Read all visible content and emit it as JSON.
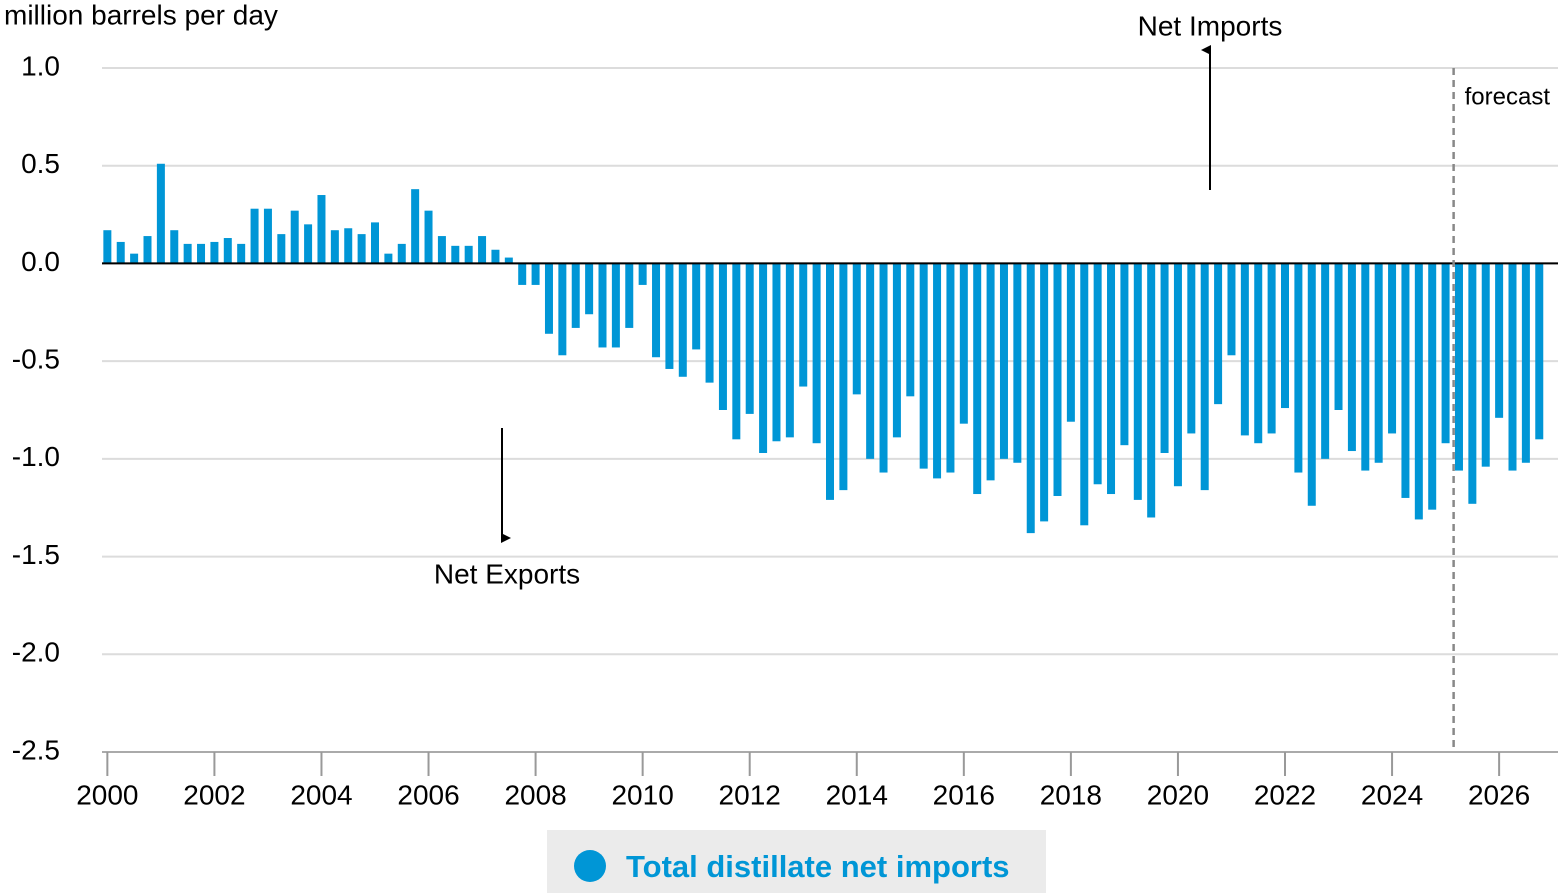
{
  "chart_data": {
    "type": "bar",
    "y_label": "million barrels per day",
    "series": [
      {
        "name": "Total distillate net imports",
        "color": "#0096d6",
        "x": [
          2000,
          2000.25,
          2000.5,
          2000.75,
          2001,
          2001.25,
          2001.5,
          2001.75,
          2002,
          2002.25,
          2002.5,
          2002.75,
          2003,
          2003.25,
          2003.5,
          2003.75,
          2004,
          2004.25,
          2004.5,
          2004.75,
          2005,
          2005.25,
          2005.5,
          2005.75,
          2006,
          2006.25,
          2006.5,
          2006.75,
          2007,
          2007.25,
          2007.5,
          2007.75,
          2008,
          2008.25,
          2008.5,
          2008.75,
          2009,
          2009.25,
          2009.5,
          2009.75,
          2010,
          2010.25,
          2010.5,
          2010.75,
          2011,
          2011.25,
          2011.5,
          2011.75,
          2012,
          2012.25,
          2012.5,
          2012.75,
          2013,
          2013.25,
          2013.5,
          2013.75,
          2014,
          2014.25,
          2014.5,
          2014.75,
          2015,
          2015.25,
          2015.5,
          2015.75,
          2016,
          2016.25,
          2016.5,
          2016.75,
          2017,
          2017.25,
          2017.5,
          2017.75,
          2018,
          2018.25,
          2018.5,
          2018.75,
          2019,
          2019.25,
          2019.5,
          2019.75,
          2020,
          2020.25,
          2020.5,
          2020.75,
          2021,
          2021.25,
          2021.5,
          2021.75,
          2022,
          2022.25,
          2022.5,
          2022.75,
          2023,
          2023.25,
          2023.5,
          2023.75,
          2024,
          2024.25,
          2024.5,
          2024.75,
          2025,
          2025.25,
          2025.5,
          2025.75,
          2026,
          2026.25,
          2026.5,
          2026.75
        ],
        "values": [
          0.17,
          0.11,
          0.05,
          0.14,
          0.51,
          0.17,
          0.1,
          0.1,
          0.11,
          0.13,
          0.1,
          0.28,
          0.28,
          0.15,
          0.27,
          0.2,
          0.35,
          0.17,
          0.18,
          0.15,
          0.21,
          0.05,
          0.1,
          0.38,
          0.27,
          0.14,
          0.09,
          0.09,
          0.14,
          0.07,
          0.03,
          -0.11,
          -0.11,
          -0.36,
          -0.47,
          -0.33,
          -0.26,
          -0.43,
          -0.43,
          -0.33,
          -0.11,
          -0.48,
          -0.54,
          -0.58,
          -0.44,
          -0.61,
          -0.75,
          -0.9,
          -0.77,
          -0.97,
          -0.91,
          -0.89,
          -0.63,
          -0.92,
          -1.21,
          -1.16,
          -0.67,
          -1.0,
          -1.07,
          -0.89,
          -0.68,
          -1.05,
          -1.1,
          -1.07,
          -0.82,
          -1.18,
          -1.11,
          -1.0,
          -1.02,
          -1.38,
          -1.32,
          -1.19,
          -0.81,
          -1.34,
          -1.13,
          -1.18,
          -0.93,
          -1.21,
          -1.3,
          -0.97,
          -1.14,
          -0.87,
          -1.16,
          -0.72,
          -0.47,
          -0.88,
          -0.92,
          -0.87,
          -0.74,
          -1.07,
          -1.24,
          -1.0,
          -0.75,
          -0.96,
          -1.06,
          -1.02,
          -0.87,
          -1.2,
          -1.31,
          -1.26,
          -0.92,
          -1.06,
          -1.23,
          -1.04,
          -0.79,
          -1.06,
          -1.02,
          -0.9
        ]
      }
    ],
    "xlim": [
      1999.9,
      2027.1
    ],
    "xticks": [
      2000,
      2002,
      2004,
      2006,
      2008,
      2010,
      2012,
      2014,
      2016,
      2018,
      2020,
      2022,
      2024,
      2026
    ],
    "ylim": [
      -2.5,
      1.0
    ],
    "yticks": [
      {
        "value": -2.5,
        "label": "-2.5"
      },
      {
        "value": -2,
        "label": "-2.0"
      },
      {
        "value": -1.5,
        "label": "-1.5"
      },
      {
        "value": -1,
        "label": "-1.0"
      },
      {
        "value": -0.5,
        "label": "-0.5"
      },
      {
        "value": 0,
        "label": "0.0"
      },
      {
        "value": 0.5,
        "label": "0.5"
      },
      {
        "value": 1,
        "label": "1.0"
      }
    ],
    "grid": true,
    "legend": "bottom",
    "forecast_start": 2025.15,
    "annotations": {
      "forecast": "forecast",
      "net_imports": "Net Imports",
      "net_exports": "Net Exports"
    }
  }
}
